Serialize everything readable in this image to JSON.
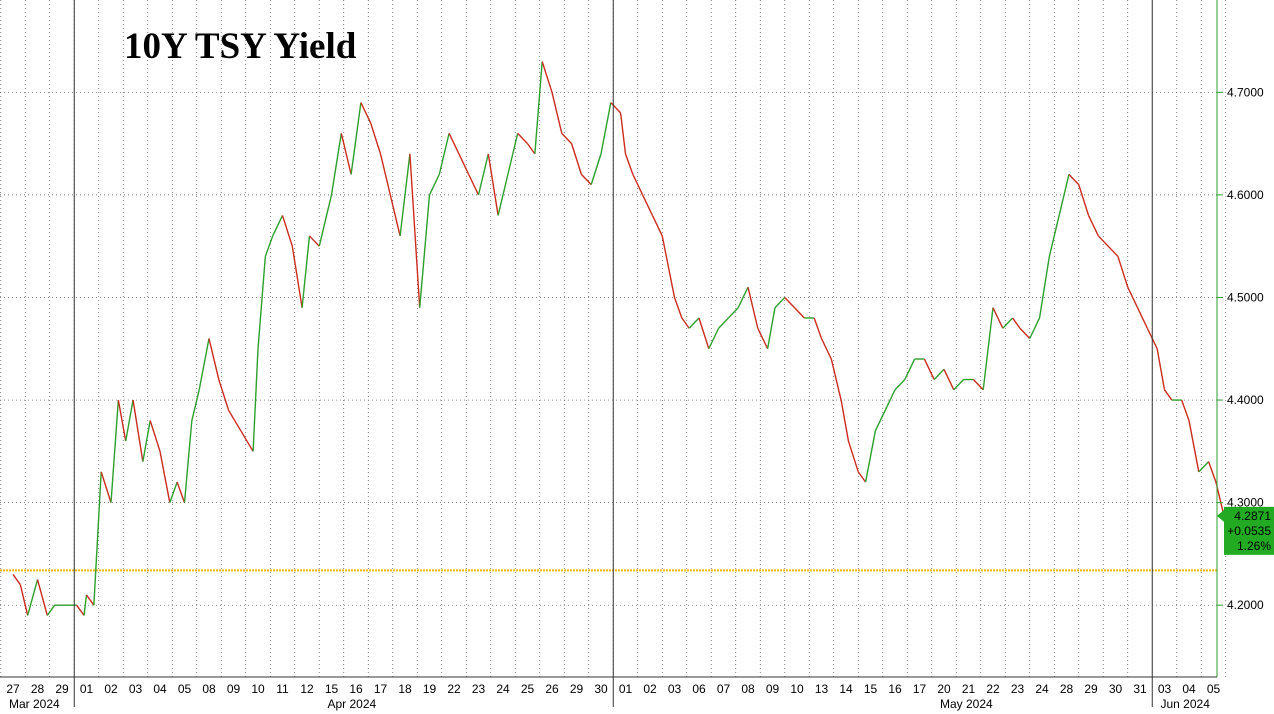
{
  "chart_data": {
    "type": "line",
    "title": "10Y TSY Yield",
    "y_axis": {
      "ylim": [
        4.13,
        4.79
      ],
      "ticks": [
        "4.2000",
        "4.3000",
        "4.4000",
        "4.5000",
        "4.6000",
        "4.7000"
      ],
      "tick_values": [
        4.2,
        4.3,
        4.4,
        4.5,
        4.6,
        4.7
      ],
      "position": "right"
    },
    "x_axis": {
      "day_labels": [
        "27",
        "28",
        "29",
        "01",
        "02",
        "03",
        "04",
        "05",
        "08",
        "09",
        "10",
        "11",
        "12",
        "15",
        "16",
        "17",
        "18",
        "19",
        "22",
        "23",
        "24",
        "25",
        "26",
        "29",
        "30",
        "01",
        "02",
        "03",
        "06",
        "07",
        "08",
        "09",
        "10",
        "13",
        "14",
        "15",
        "16",
        "17",
        "20",
        "21",
        "22",
        "23",
        "24",
        "28",
        "29",
        "30",
        "31",
        "03",
        "04",
        "05"
      ],
      "month_labels": [
        {
          "label": "Mar 2024",
          "day_index": 0
        },
        {
          "label": "Apr 2024",
          "day_index": 13
        },
        {
          "label": "May 2024",
          "day_index": 38
        },
        {
          "label": "Jun 2024",
          "day_index": 47
        }
      ],
      "month_start_indices": [
        3,
        25,
        47
      ]
    },
    "reference_line": {
      "value": 4.234,
      "color": "#f5b800",
      "style": "dotted"
    },
    "grid": true,
    "colors": {
      "up": "#2ca02c",
      "down": "#cc2b1d",
      "tag_bg": "#22aa22"
    },
    "last_value_tag": {
      "value": "4.2871",
      "change": "+0.0535",
      "pct": "1.26%"
    },
    "series": [
      {
        "values": [
          [
            0,
            4.23
          ],
          [
            0.3,
            4.22
          ],
          [
            0.6,
            4.19
          ],
          [
            1.0,
            4.225
          ],
          [
            1.4,
            4.19
          ],
          [
            1.7,
            4.2
          ],
          [
            2.2,
            4.2
          ],
          [
            2.6,
            4.2
          ],
          [
            2.9,
            4.19
          ],
          [
            3.0,
            4.21
          ],
          [
            3.3,
            4.2
          ],
          [
            3.6,
            4.33
          ],
          [
            4.0,
            4.3
          ],
          [
            4.3,
            4.4
          ],
          [
            4.6,
            4.36
          ],
          [
            4.9,
            4.4
          ],
          [
            5.3,
            4.34
          ],
          [
            5.6,
            4.38
          ],
          [
            6.0,
            4.35
          ],
          [
            6.4,
            4.3
          ],
          [
            6.7,
            4.32
          ],
          [
            7.0,
            4.3
          ],
          [
            7.3,
            4.38
          ],
          [
            7.6,
            4.41
          ],
          [
            8.0,
            4.46
          ],
          [
            8.4,
            4.42
          ],
          [
            8.8,
            4.39
          ],
          [
            9.3,
            4.37
          ],
          [
            9.8,
            4.35
          ],
          [
            10.0,
            4.45
          ],
          [
            10.3,
            4.54
          ],
          [
            10.6,
            4.56
          ],
          [
            11.0,
            4.58
          ],
          [
            11.4,
            4.55
          ],
          [
            11.8,
            4.49
          ],
          [
            12.1,
            4.56
          ],
          [
            12.5,
            4.55
          ],
          [
            13.0,
            4.6
          ],
          [
            13.4,
            4.66
          ],
          [
            13.8,
            4.62
          ],
          [
            14.2,
            4.69
          ],
          [
            14.6,
            4.67
          ],
          [
            15.0,
            4.64
          ],
          [
            15.4,
            4.6
          ],
          [
            15.8,
            4.56
          ],
          [
            16.2,
            4.64
          ],
          [
            16.6,
            4.49
          ],
          [
            17.0,
            4.6
          ],
          [
            17.4,
            4.62
          ],
          [
            17.8,
            4.66
          ],
          [
            18.2,
            4.64
          ],
          [
            18.6,
            4.62
          ],
          [
            19.0,
            4.6
          ],
          [
            19.4,
            4.64
          ],
          [
            19.8,
            4.58
          ],
          [
            20.2,
            4.62
          ],
          [
            20.6,
            4.66
          ],
          [
            21.0,
            4.65
          ],
          [
            21.3,
            4.64
          ],
          [
            21.6,
            4.73
          ],
          [
            22.0,
            4.7
          ],
          [
            22.4,
            4.66
          ],
          [
            22.8,
            4.65
          ],
          [
            23.2,
            4.62
          ],
          [
            23.6,
            4.61
          ],
          [
            24.0,
            4.64
          ],
          [
            24.4,
            4.69
          ],
          [
            24.8,
            4.68
          ],
          [
            25.0,
            4.64
          ],
          [
            25.3,
            4.62
          ],
          [
            25.7,
            4.6
          ],
          [
            26.1,
            4.58
          ],
          [
            26.5,
            4.56
          ],
          [
            27.0,
            4.5
          ],
          [
            27.3,
            4.48
          ],
          [
            27.6,
            4.47
          ],
          [
            28.0,
            4.48
          ],
          [
            28.4,
            4.45
          ],
          [
            28.8,
            4.47
          ],
          [
            29.2,
            4.48
          ],
          [
            29.6,
            4.49
          ],
          [
            30.0,
            4.51
          ],
          [
            30.4,
            4.47
          ],
          [
            30.8,
            4.45
          ],
          [
            31.1,
            4.49
          ],
          [
            31.5,
            4.5
          ],
          [
            31.9,
            4.49
          ],
          [
            32.3,
            4.48
          ],
          [
            32.7,
            4.48
          ],
          [
            33.0,
            4.46
          ],
          [
            33.4,
            4.44
          ],
          [
            33.8,
            4.4
          ],
          [
            34.1,
            4.36
          ],
          [
            34.5,
            4.33
          ],
          [
            34.8,
            4.32
          ],
          [
            35.2,
            4.37
          ],
          [
            35.6,
            4.39
          ],
          [
            36.0,
            4.41
          ],
          [
            36.4,
            4.42
          ],
          [
            36.8,
            4.44
          ],
          [
            37.2,
            4.44
          ],
          [
            37.6,
            4.42
          ],
          [
            38.0,
            4.43
          ],
          [
            38.4,
            4.41
          ],
          [
            38.8,
            4.42
          ],
          [
            39.2,
            4.42
          ],
          [
            39.6,
            4.41
          ],
          [
            40.0,
            4.49
          ],
          [
            40.4,
            4.47
          ],
          [
            40.8,
            4.48
          ],
          [
            41.1,
            4.47
          ],
          [
            41.5,
            4.46
          ],
          [
            41.9,
            4.48
          ],
          [
            42.3,
            4.54
          ],
          [
            42.7,
            4.58
          ],
          [
            43.1,
            4.62
          ],
          [
            43.5,
            4.61
          ],
          [
            43.9,
            4.58
          ],
          [
            44.3,
            4.56
          ],
          [
            44.7,
            4.55
          ],
          [
            45.1,
            4.54
          ],
          [
            45.5,
            4.51
          ],
          [
            45.9,
            4.49
          ],
          [
            46.3,
            4.47
          ],
          [
            46.7,
            4.45
          ],
          [
            47.0,
            4.41
          ],
          [
            47.3,
            4.4
          ],
          [
            47.7,
            4.4
          ],
          [
            48.0,
            4.38
          ],
          [
            48.4,
            4.33
          ],
          [
            48.8,
            4.34
          ],
          [
            49.1,
            4.32
          ],
          [
            49.4,
            4.29
          ],
          [
            49.8,
            4.287
          ]
        ]
      }
    ]
  }
}
